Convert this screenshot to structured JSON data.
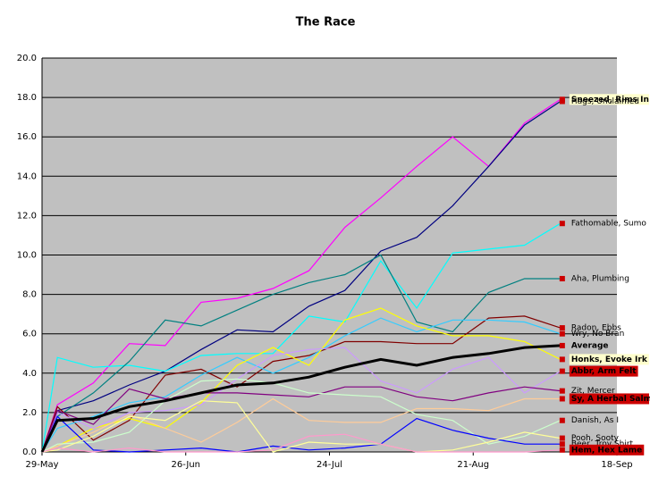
{
  "chart_data": {
    "type": "line",
    "title": "The Race",
    "x": [
      "29-May",
      "1-Jun",
      "8-Jun",
      "15-Jun",
      "22-Jun",
      "29-Jun",
      "6-Jul",
      "13-Jul",
      "20-Jul",
      "27-Jul",
      "3-Aug",
      "10-Aug",
      "17-Aug",
      "24-Aug",
      "31-Aug",
      "7-Sep"
    ],
    "xlim": [
      "29-May",
      "18-Sep"
    ],
    "xticks": [
      "29-May",
      "26-Jun",
      "24-Jul",
      "21-Aug",
      "18-Sep"
    ],
    "ylim": [
      0,
      20
    ],
    "yticks": [
      {
        "value": 0,
        "label": "0.0"
      },
      {
        "value": 2,
        "label": "2.0"
      },
      {
        "value": 4,
        "label": "4.0"
      },
      {
        "value": 6,
        "label": "6.0"
      },
      {
        "value": 8,
        "label": "8.0"
      },
      {
        "value": 10,
        "label": "10.0"
      },
      {
        "value": 12,
        "label": "12.0"
      },
      {
        "value": 14,
        "label": "14.0"
      },
      {
        "value": 16,
        "label": "16.0"
      },
      {
        "value": 18,
        "label": "18.0"
      },
      {
        "value": 20,
        "label": "20.0"
      }
    ],
    "grid": true,
    "background": "#c0c0c0",
    "marker_color": "#cc0000",
    "series": [
      {
        "name": "Sneezed, Rims In",
        "color": "#ff00ff",
        "label_bg": "#ffffcc",
        "values": [
          0,
          2.4,
          3.5,
          5.5,
          5.4,
          7.6,
          7.8,
          8.3,
          9.2,
          11.4,
          12.9,
          14.5,
          16.0,
          14.5,
          16.7,
          17.9
        ]
      },
      {
        "name": "Hags, Unclaimed",
        "color": "#000080",
        "values": [
          0,
          2.1,
          2.6,
          3.4,
          4.1,
          5.2,
          6.2,
          6.1,
          7.4,
          8.2,
          10.2,
          10.9,
          12.5,
          14.5,
          16.6,
          17.8
        ]
      },
      {
        "name": "Fathomable, Sumo",
        "color": "#00ffff",
        "values": [
          0,
          4.8,
          4.3,
          4.4,
          4.1,
          4.9,
          5.0,
          5.0,
          6.9,
          6.6,
          9.7,
          7.3,
          10.1,
          10.3,
          10.5,
          11.6
        ]
      },
      {
        "name": "Aha, Plumbing",
        "color": "#008080",
        "values": [
          0,
          1.8,
          3.0,
          4.6,
          6.7,
          6.4,
          7.2,
          8.0,
          8.6,
          9.0,
          10.0,
          6.6,
          6.1,
          8.1,
          8.8,
          8.8
        ]
      },
      {
        "name": "Radon, Ebbs",
        "color": "#800000",
        "values": [
          0,
          2.3,
          0.6,
          1.6,
          3.9,
          4.2,
          3.3,
          4.6,
          4.9,
          5.6,
          5.6,
          5.5,
          5.5,
          6.8,
          6.9,
          6.3
        ]
      },
      {
        "name": "Wry, No Bran",
        "color": "#33ccff",
        "values": [
          0,
          1.2,
          1.8,
          2.5,
          2.8,
          3.9,
          4.8,
          4.0,
          4.8,
          5.9,
          6.8,
          6.1,
          6.7,
          6.7,
          6.6,
          6.0
        ]
      },
      {
        "name": "Average",
        "color": "#000000",
        "bold": true,
        "values": [
          0,
          1.6,
          1.7,
          2.3,
          2.6,
          3.0,
          3.4,
          3.5,
          3.8,
          4.3,
          4.7,
          4.4,
          4.8,
          5.0,
          5.3,
          5.4
        ]
      },
      {
        "name": "Honks, Evoke Irk",
        "color": "#ffff00",
        "label_bg": "#ffffcc",
        "values": [
          0,
          0.3,
          1.2,
          1.7,
          1.2,
          2.5,
          4.4,
          5.3,
          4.4,
          6.7,
          7.3,
          6.4,
          5.9,
          5.9,
          5.6,
          4.7
        ]
      },
      {
        "name": "Abbr, Arm Felt",
        "color": "#cc99ff",
        "label_bg": "#cc0000",
        "values": [
          0,
          2.0,
          1.2,
          2.0,
          2.1,
          2.4,
          3.7,
          4.9,
          5.2,
          5.3,
          3.6,
          3.0,
          4.2,
          4.8,
          3.0,
          4.1
        ]
      },
      {
        "name": "Zit, Mercer",
        "color": "#800080",
        "values": [
          0,
          2.1,
          1.4,
          3.2,
          2.7,
          3.0,
          3.0,
          2.9,
          2.8,
          3.3,
          3.3,
          2.8,
          2.6,
          3.0,
          3.3,
          3.1
        ]
      },
      {
        "name": "Sy, A Herbal Salmon",
        "color": "#ffcc99",
        "label_bg": "#cc0000",
        "values": [
          0,
          0.3,
          1.0,
          1.9,
          1.2,
          0.5,
          1.5,
          2.7,
          1.6,
          1.5,
          1.5,
          2.2,
          2.2,
          2.1,
          2.7,
          2.7
        ]
      },
      {
        "name": "Danish, As I",
        "color": "#ccffcc",
        "values": [
          0,
          0.4,
          0.5,
          1.0,
          2.6,
          3.6,
          3.7,
          3.5,
          3.0,
          2.9,
          2.8,
          1.9,
          1.6,
          0.4,
          0.8,
          1.6
        ]
      },
      {
        "name": "Beer, Troy Shirt",
        "color": "#0000ff",
        "values": [
          0,
          1.8,
          0.1,
          0.0,
          0.1,
          0.2,
          0.0,
          0.3,
          0.1,
          0.2,
          0.4,
          1.7,
          1.1,
          0.7,
          0.4,
          0.4
        ]
      },
      {
        "name": "Pooh, Sooty",
        "color": "#ffff99",
        "values": [
          0,
          0.1,
          0.8,
          1.8,
          1.6,
          2.6,
          2.5,
          0.0,
          0.5,
          0.4,
          0.4,
          0.0,
          0.1,
          0.5,
          1.0,
          0.7
        ]
      },
      {
        "name": "Hem, Hex Lame",
        "color": "#ff99cc",
        "label_bg": "#cc0000",
        "values": [
          0,
          0.2,
          0.0,
          0.2,
          0.0,
          0.0,
          0.0,
          0.1,
          0.8,
          0.9,
          0.4,
          0.0,
          0.0,
          0.0,
          0.0,
          0.1
        ]
      }
    ]
  }
}
